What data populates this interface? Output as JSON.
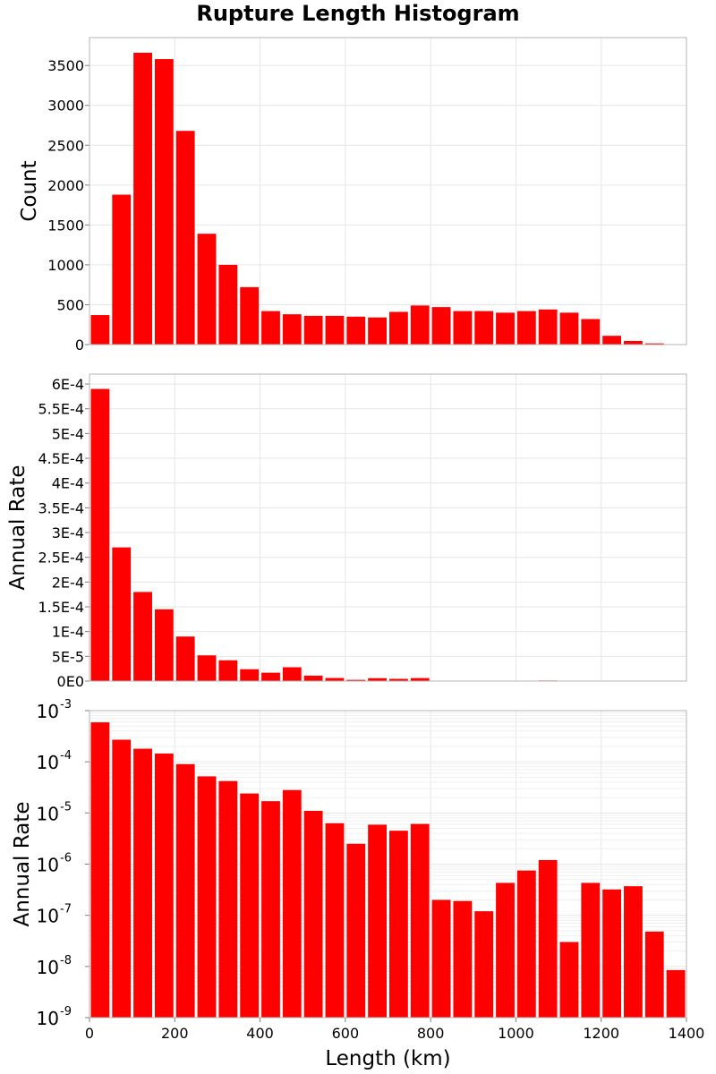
{
  "chart_data": [
    {
      "type": "bar",
      "title": "Rupture Length Histogram",
      "xlabel": "",
      "ylabel": "Count",
      "xlim": [
        0,
        1400
      ],
      "ylim": [
        0,
        3850
      ],
      "bin_width": 50,
      "x": [
        25,
        75,
        125,
        175,
        225,
        275,
        325,
        375,
        425,
        475,
        525,
        575,
        625,
        675,
        725,
        775,
        825,
        875,
        925,
        975,
        1025,
        1075,
        1125,
        1175,
        1225,
        1275,
        1325,
        1375
      ],
      "values": [
        370,
        1880,
        3660,
        3580,
        2680,
        1390,
        1000,
        720,
        420,
        380,
        360,
        360,
        350,
        340,
        410,
        490,
        470,
        420,
        420,
        400,
        420,
        440,
        400,
        320,
        110,
        45,
        15,
        4
      ],
      "yticks": [
        "0",
        "500",
        "1000",
        "1500",
        "2000",
        "2500",
        "3000",
        "3500"
      ],
      "color": "#ff0000"
    },
    {
      "type": "bar",
      "xlabel": "",
      "ylabel": "Annual Rate",
      "xlim": [
        0,
        1400
      ],
      "ylim": [
        0,
        0.00062
      ],
      "bin_width": 50,
      "x": [
        25,
        75,
        125,
        175,
        225,
        275,
        325,
        375,
        425,
        475,
        525,
        575,
        625,
        675,
        725,
        775,
        825,
        875,
        925,
        975,
        1025,
        1075,
        1125,
        1175,
        1225,
        1275,
        1325,
        1375
      ],
      "values": [
        0.00059,
        0.00027,
        0.00018,
        0.000145,
        9e-05,
        5.2e-05,
        4.2e-05,
        2.4e-05,
        1.7e-05,
        2.8e-05,
        1.1e-05,
        6.3e-06,
        2.5e-06,
        5.9e-06,
        4.5e-06,
        6.1e-06,
        2e-07,
        1.9e-07,
        1.2e-07,
        4.3e-07,
        7.5e-07,
        1.2e-06,
        3e-08,
        4.3e-07,
        3.2e-07,
        3.7e-07,
        4.8e-08,
        8.5e-09
      ],
      "yticks": [
        "0E0",
        "5E-5",
        "1E-4",
        "1.5E-4",
        "2E-4",
        "2.5E-4",
        "3E-4",
        "3.5E-4",
        "4E-4",
        "4.5E-4",
        "5E-4",
        "5.5E-4",
        "6E-4"
      ],
      "color": "#ff0000"
    },
    {
      "type": "bar",
      "xlabel": "Length (km)",
      "ylabel": "Annual Rate",
      "y_scale": "log",
      "xlim": [
        0,
        1400
      ],
      "ylim": [
        1e-09,
        0.001
      ],
      "bin_width": 50,
      "x": [
        25,
        75,
        125,
        175,
        225,
        275,
        325,
        375,
        425,
        475,
        525,
        575,
        625,
        675,
        725,
        775,
        825,
        875,
        925,
        975,
        1025,
        1075,
        1125,
        1175,
        1225,
        1275,
        1325,
        1375
      ],
      "values": [
        0.00059,
        0.00027,
        0.00018,
        0.000145,
        9e-05,
        5.2e-05,
        4.2e-05,
        2.4e-05,
        1.7e-05,
        2.8e-05,
        1.1e-05,
        6.3e-06,
        2.5e-06,
        5.9e-06,
        4.5e-06,
        6.1e-06,
        2e-07,
        1.9e-07,
        1.2e-07,
        4.3e-07,
        7.5e-07,
        1.2e-06,
        3e-08,
        4.3e-07,
        3.2e-07,
        3.7e-07,
        4.8e-08,
        8.5e-09
      ],
      "xticks": [
        "0",
        "200",
        "400",
        "600",
        "800",
        "1000",
        "1200",
        "1400"
      ],
      "yticks": [
        {
          "base": "10",
          "exp": "-9"
        },
        {
          "base": "10",
          "exp": "-8"
        },
        {
          "base": "10",
          "exp": "-7"
        },
        {
          "base": "10",
          "exp": "-6"
        },
        {
          "base": "10",
          "exp": "-5"
        },
        {
          "base": "10",
          "exp": "-4"
        },
        {
          "base": "10",
          "exp": "-3"
        }
      ],
      "color": "#ff0000"
    }
  ]
}
